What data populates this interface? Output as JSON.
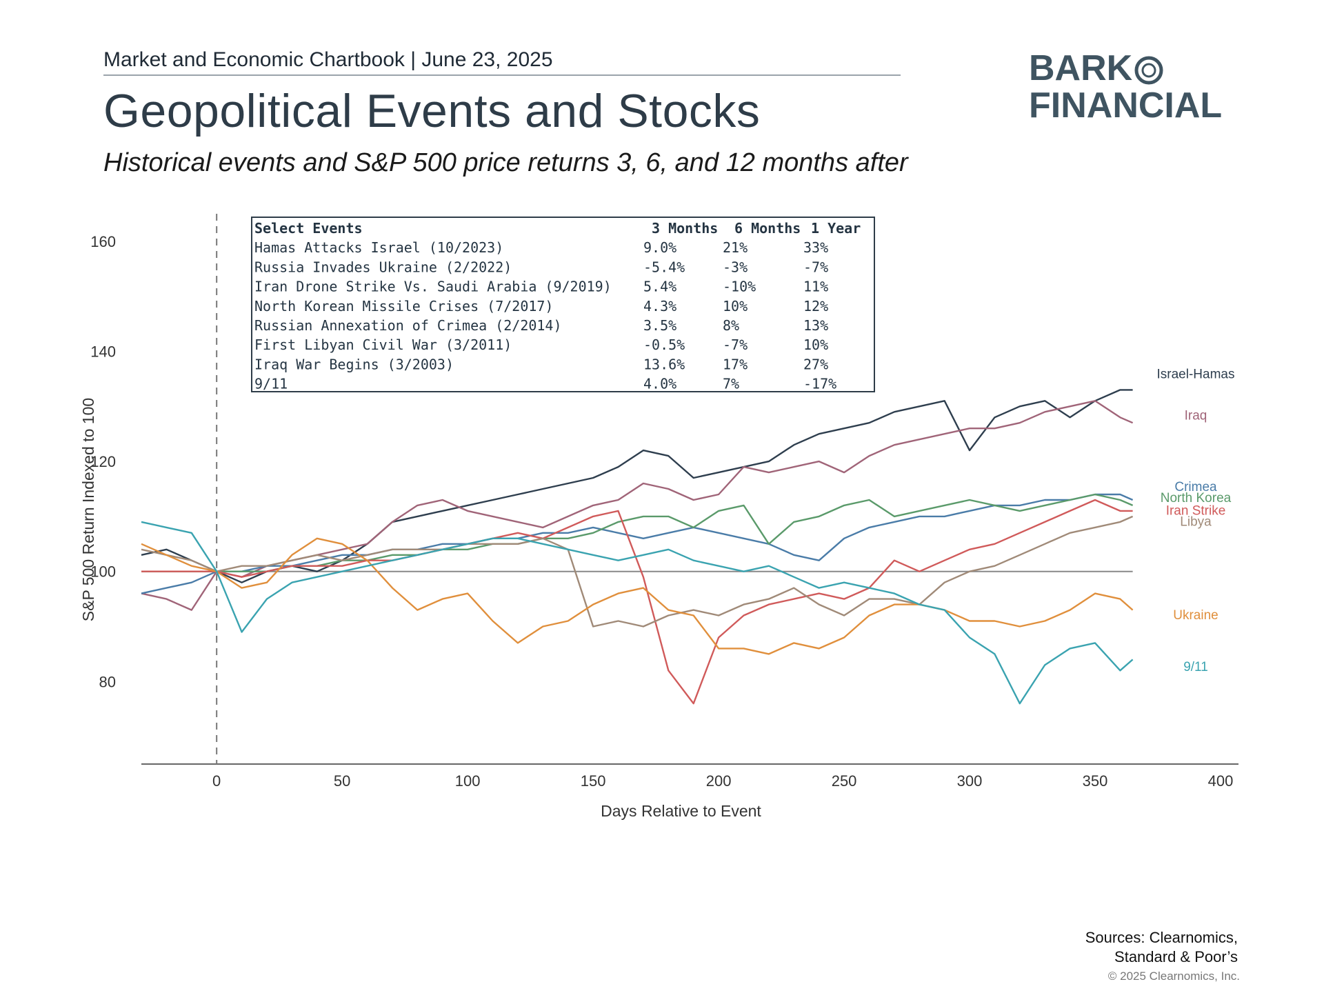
{
  "header": {
    "chartbook_line": "Market and Economic Chartbook | June 23, 2025",
    "title": "Geopolitical Events and Stocks",
    "subtitle": "Historical events and S&P 500 price returns 3, 6, and 12 months after"
  },
  "logo": {
    "line1": "BARK",
    "line2": "FINANCIAL",
    "icon": "ring-icon",
    "color": "#3f5461"
  },
  "footer": {
    "sources_line1": "Sources: Clearnomics,",
    "sources_line2": "Standard & Poor’s",
    "copyright": "© 2025 Clearnomics, Inc."
  },
  "chart_data": {
    "type": "line",
    "xlabel": "Days Relative to Event",
    "ylabel": "S&P 500 Return Indexed to 100",
    "xlim": [
      -30,
      400
    ],
    "ylim": [
      65,
      165
    ],
    "xticks": [
      0,
      50,
      100,
      150,
      200,
      250,
      300,
      350,
      400
    ],
    "yticks": [
      80,
      100,
      120,
      140,
      160
    ],
    "reference_line_y": 100,
    "event_line_x": 0,
    "grid": false,
    "table": {
      "headers": [
        "Select Events",
        "3 Months",
        "6 Months",
        "1 Year"
      ],
      "rows": [
        [
          "Hamas Attacks Israel (10/2023)",
          "9.0%",
          "21%",
          "33%"
        ],
        [
          "Russia Invades Ukraine (2/2022)",
          "-5.4%",
          "-3%",
          "-7%"
        ],
        [
          "Iran Drone Strike Vs. Saudi Arabia (9/2019)",
          "5.4%",
          "-10%",
          "11%"
        ],
        [
          "North Korean Missile Crises (7/2017)",
          "4.3%",
          "10%",
          "12%"
        ],
        [
          "Russian Annexation of Crimea (2/2014)",
          "3.5%",
          "8%",
          "13%"
        ],
        [
          "First Libyan Civil War (3/2011)",
          "-0.5%",
          "-7%",
          "10%"
        ],
        [
          "Iraq War Begins (3/2003)",
          "13.6%",
          "17%",
          "27%"
        ],
        [
          "9/11",
          "4.0%",
          "7%",
          "-17%"
        ]
      ]
    },
    "series": [
      {
        "name": "Israel-Hamas",
        "color": "#2e3e4e",
        "x": [
          -30,
          -20,
          -10,
          0,
          10,
          20,
          30,
          40,
          50,
          60,
          70,
          80,
          90,
          100,
          110,
          120,
          130,
          140,
          150,
          160,
          170,
          180,
          190,
          200,
          210,
          220,
          230,
          240,
          250,
          260,
          270,
          280,
          290,
          300,
          310,
          320,
          330,
          340,
          350,
          360,
          365
        ],
        "y": [
          103,
          104,
          102,
          100,
          98,
          100,
          101,
          100,
          102,
          105,
          109,
          110,
          111,
          112,
          113,
          114,
          115,
          116,
          117,
          119,
          122,
          121,
          117,
          118,
          119,
          120,
          123,
          125,
          126,
          127,
          129,
          130,
          131,
          122,
          128,
          130,
          131,
          128,
          131,
          133,
          133
        ]
      },
      {
        "name": "Iraq",
        "color": "#a06478",
        "x": [
          -30,
          -20,
          -10,
          0,
          10,
          20,
          30,
          40,
          50,
          60,
          70,
          80,
          90,
          100,
          110,
          120,
          130,
          140,
          150,
          160,
          170,
          180,
          190,
          200,
          210,
          220,
          230,
          240,
          250,
          260,
          270,
          280,
          290,
          300,
          310,
          320,
          330,
          340,
          350,
          360,
          365
        ],
        "y": [
          96,
          95,
          93,
          100,
          99,
          101,
          102,
          103,
          104,
          105,
          109,
          112,
          113,
          111,
          110,
          109,
          108,
          110,
          112,
          113,
          116,
          115,
          113,
          114,
          119,
          118,
          119,
          120,
          118,
          121,
          123,
          124,
          125,
          126,
          126,
          127,
          129,
          130,
          131,
          128,
          127
        ]
      },
      {
        "name": "Crimea",
        "color": "#4a7ca8",
        "x": [
          -30,
          -20,
          -10,
          0,
          10,
          20,
          30,
          40,
          50,
          60,
          70,
          80,
          90,
          100,
          110,
          120,
          130,
          140,
          150,
          160,
          170,
          180,
          190,
          200,
          210,
          220,
          230,
          240,
          250,
          260,
          270,
          280,
          290,
          300,
          310,
          320,
          330,
          340,
          350,
          360,
          365
        ],
        "y": [
          96,
          97,
          98,
          100,
          100,
          101,
          101,
          102,
          103,
          103,
          104,
          104,
          105,
          105,
          106,
          106,
          107,
          107,
          108,
          107,
          106,
          107,
          108,
          107,
          106,
          105,
          103,
          102,
          106,
          108,
          109,
          110,
          110,
          111,
          112,
          112,
          113,
          113,
          114,
          114,
          113
        ]
      },
      {
        "name": "North Korea",
        "color": "#5a9a6a",
        "x": [
          -30,
          -20,
          -10,
          0,
          10,
          20,
          30,
          40,
          50,
          60,
          70,
          80,
          90,
          100,
          110,
          120,
          130,
          140,
          150,
          160,
          170,
          180,
          190,
          200,
          210,
          220,
          230,
          240,
          250,
          260,
          270,
          280,
          290,
          300,
          310,
          320,
          330,
          340,
          350,
          360,
          365
        ],
        "y": [
          100,
          100,
          100,
          100,
          100,
          100,
          101,
          101,
          102,
          102,
          103,
          103,
          104,
          104,
          105,
          105,
          106,
          106,
          107,
          109,
          110,
          110,
          108,
          111,
          112,
          105,
          109,
          110,
          112,
          113,
          110,
          111,
          112,
          113,
          112,
          111,
          112,
          113,
          114,
          113,
          112
        ]
      },
      {
        "name": "Iran Strike",
        "color": "#d05a5a",
        "x": [
          -30,
          -20,
          -10,
          0,
          10,
          20,
          30,
          40,
          50,
          60,
          70,
          80,
          90,
          100,
          110,
          120,
          130,
          140,
          150,
          160,
          170,
          180,
          190,
          200,
          210,
          220,
          230,
          240,
          250,
          260,
          270,
          280,
          290,
          300,
          310,
          320,
          330,
          340,
          350,
          360,
          365
        ],
        "y": [
          100,
          100,
          100,
          100,
          99,
          100,
          101,
          101,
          101,
          102,
          102,
          103,
          104,
          105,
          106,
          107,
          106,
          108,
          110,
          111,
          99,
          82,
          76,
          88,
          92,
          94,
          95,
          96,
          95,
          97,
          102,
          100,
          102,
          104,
          105,
          107,
          109,
          111,
          113,
          111,
          111
        ]
      },
      {
        "name": "Libya",
        "color": "#a08a78",
        "x": [
          -30,
          -20,
          -10,
          0,
          10,
          20,
          30,
          40,
          50,
          60,
          70,
          80,
          90,
          100,
          110,
          120,
          130,
          140,
          150,
          160,
          170,
          180,
          190,
          200,
          210,
          220,
          230,
          240,
          250,
          260,
          270,
          280,
          290,
          300,
          310,
          320,
          330,
          340,
          350,
          360,
          365
        ],
        "y": [
          104,
          103,
          102,
          100,
          101,
          101,
          102,
          103,
          102,
          103,
          104,
          104,
          104,
          105,
          105,
          105,
          106,
          104,
          90,
          91,
          90,
          92,
          93,
          92,
          94,
          95,
          97,
          94,
          92,
          95,
          95,
          94,
          98,
          100,
          101,
          103,
          105,
          107,
          108,
          109,
          110
        ]
      },
      {
        "name": "Ukraine",
        "color": "#e08f3c",
        "x": [
          -30,
          -20,
          -10,
          0,
          10,
          20,
          30,
          40,
          50,
          60,
          70,
          80,
          90,
          100,
          110,
          120,
          130,
          140,
          150,
          160,
          170,
          180,
          190,
          200,
          210,
          220,
          230,
          240,
          250,
          260,
          270,
          280,
          290,
          300,
          310,
          320,
          330,
          340,
          350,
          360,
          365
        ],
        "y": [
          105,
          103,
          101,
          100,
          97,
          98,
          103,
          106,
          105,
          102,
          97,
          93,
          95,
          96,
          91,
          87,
          90,
          91,
          94,
          96,
          97,
          93,
          92,
          86,
          86,
          85,
          87,
          86,
          88,
          92,
          94,
          94,
          93,
          91,
          91,
          90,
          91,
          93,
          96,
          95,
          93
        ]
      },
      {
        "name": "9/11",
        "color": "#3aa3b0",
        "x": [
          -30,
          -20,
          -10,
          0,
          10,
          20,
          30,
          40,
          50,
          60,
          70,
          80,
          90,
          100,
          110,
          120,
          130,
          140,
          150,
          160,
          170,
          180,
          190,
          200,
          210,
          220,
          230,
          240,
          250,
          260,
          270,
          280,
          290,
          300,
          310,
          320,
          330,
          340,
          350,
          360,
          365
        ],
        "y": [
          109,
          108,
          107,
          100,
          89,
          95,
          98,
          99,
          100,
          101,
          102,
          103,
          104,
          105,
          106,
          106,
          105,
          104,
          103,
          102,
          103,
          104,
          102,
          101,
          100,
          101,
          99,
          97,
          98,
          97,
          96,
          94,
          93,
          88,
          85,
          76,
          83,
          86,
          87,
          82,
          84
        ]
      }
    ]
  }
}
